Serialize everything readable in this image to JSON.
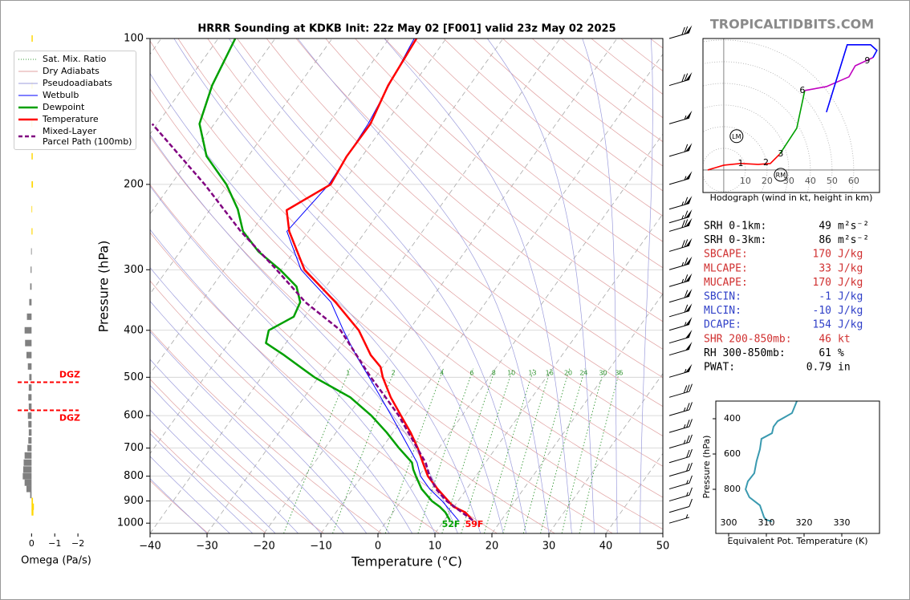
{
  "watermark": "TROPICALTIDBITS.COM",
  "chart_data": [
    {
      "type": "skewt",
      "title": "HRRR Sounding at KDKB Init: 22z May 02 [F001] valid 23z May 02 2025",
      "xlabel": "Temperature (°C)",
      "ylabel": "Pressure (hPa)",
      "xlim": [
        -40,
        50
      ],
      "ylim": [
        1050,
        100
      ],
      "log_y": true,
      "grid": true,
      "legend": "upper left",
      "xticks": [
        {
          "value": -40,
          "label": "−40"
        },
        {
          "value": -30,
          "label": "−30"
        },
        {
          "value": -20,
          "label": "−20"
        },
        {
          "value": -10,
          "label": "−10"
        },
        0,
        10,
        20,
        30,
        40,
        50
      ],
      "yticks": [
        100,
        200,
        300,
        400,
        500,
        600,
        700,
        800,
        900,
        1000
      ],
      "reference_lines": [
        {
          "name": "Sat. Mix. Ratio",
          "color": "#3a9a3a",
          "style": "dotted"
        },
        {
          "name": "Dry Adiabats",
          "color": "#e0a0a0",
          "style": "solid"
        },
        {
          "name": "Pseudoadiabats",
          "color": "#9c9cdc",
          "style": "solid"
        }
      ],
      "mixing_ratios": [
        1,
        2,
        4,
        6,
        8,
        10,
        13,
        16,
        20,
        24,
        30,
        36
      ],
      "series": [
        {
          "name": "Wetbulb",
          "color": "#0000ff",
          "linewidth": 1,
          "style": "solid",
          "pressure": [
            987,
            900,
            850,
            800,
            750,
            700,
            600,
            500,
            450,
            400,
            350,
            300,
            250,
            200,
            150,
            100
          ],
          "values": [
            12.5,
            7.2,
            3.5,
            0.3,
            -2.0,
            -5.2,
            -12.4,
            -21.1,
            -26.2,
            -31.5,
            -37.2,
            -46.5,
            -53.8,
            -52.3,
            -53.0,
            -55.6
          ]
        },
        {
          "name": "Dewpoint",
          "color": "#00a000",
          "linewidth": 2.5,
          "style": "solid",
          "pressure": [
            987,
            950,
            925,
            900,
            850,
            800,
            775,
            750,
            700,
            650,
            600,
            550,
            525,
            500,
            450,
            425,
            400,
            375,
            350,
            325,
            300,
            275,
            250,
            225,
            200,
            175,
            150,
            125,
            100
          ],
          "values": [
            11.0,
            9.2,
            7.5,
            5.4,
            2.1,
            -0.5,
            -1.8,
            -2.9,
            -7.0,
            -11.1,
            -15.9,
            -21.9,
            -26.2,
            -30.7,
            -38.8,
            -43.5,
            -44.6,
            -41.9,
            -42.6,
            -45.2,
            -50.2,
            -56.3,
            -61.5,
            -65.2,
            -70.3,
            -77.3,
            -82.6,
            -85.2,
            -87.0
          ]
        },
        {
          "name": "Temperature",
          "color": "#ff0000",
          "linewidth": 2.5,
          "style": "solid",
          "pressure": [
            987,
            950,
            925,
            850,
            800,
            750,
            700,
            650,
            600,
            550,
            500,
            476,
            450,
            400,
            350,
            300,
            250,
            226,
            200,
            175,
            150,
            125,
            100
          ],
          "values": [
            15.0,
            12.7,
            9.9,
            4.9,
            1.6,
            -1.0,
            -3.7,
            -6.9,
            -10.7,
            -14.8,
            -18.7,
            -20.4,
            -23.6,
            -28.8,
            -36.4,
            -45.9,
            -53.4,
            -56.5,
            -52.0,
            -52.7,
            -52.6,
            -54.3,
            -55.2
          ]
        },
        {
          "name": "Mixed-Layer\nParcel Path (100mb)",
          "color": "#800080",
          "linewidth": 2.5,
          "style": "dashed",
          "pressure": [
            987,
            900,
            850,
            800,
            750,
            700,
            600,
            550,
            500,
            400,
            350,
            300,
            250,
            200,
            150
          ],
          "values": [
            15.0,
            8.0,
            4.6,
            1.9,
            -0.5,
            -3.8,
            -11.1,
            -15.7,
            -20.8,
            -32.0,
            -41.7,
            -50.8,
            -61.9,
            -74.1,
            -90.9
          ]
        }
      ],
      "annotations": [
        {
          "text": "52F",
          "color": "#00a000"
        },
        {
          "text": "59F",
          "color": "#ff0000"
        }
      ],
      "wind_barbs": {
        "pressure": [
          100,
          125,
          150,
          175,
          200,
          225,
          240,
          250,
          275,
          300,
          325,
          350,
          375,
          400,
          425,
          450,
          500,
          550,
          600,
          650,
          700,
          750,
          800,
          850,
          900,
          950,
          1000
        ],
        "speed": [
          70,
          70,
          55,
          60,
          55,
          65,
          65,
          70,
          70,
          65,
          65,
          60,
          60,
          55,
          50,
          50,
          55,
          30,
          25,
          25,
          25,
          20,
          20,
          15,
          15,
          10,
          5
        ]
      }
    },
    {
      "type": "hodograph",
      "caption": "Hodograph (wind in kt, height in km)",
      "xlim": [
        -9.6,
        71.9
      ],
      "ylim": [
        -10.4,
        60.7
      ],
      "rings": [
        10,
        20,
        30,
        40,
        50,
        60
      ],
      "segments": [
        {
          "color": "#ff0000",
          "u": [
            -7.4,
            0,
            7.8,
            15.9,
            21.5,
            25.9
          ],
          "v": [
            0,
            2.2,
            3.0,
            2.6,
            3.0,
            7.4
          ]
        },
        {
          "color": "#00a000",
          "u": [
            25.9,
            33.7,
            37.4
          ],
          "v": [
            7.4,
            19.3,
            36.7
          ]
        },
        {
          "color": "#c000c0",
          "u": [
            37.4,
            47.4,
            57.8,
            60.7,
            68.9
          ],
          "v": [
            36.7,
            38.5,
            43.0,
            48.1,
            51.9
          ]
        },
        {
          "color": "#0000ff",
          "u": [
            68.9,
            70.7,
            67.8,
            57.0,
            47.4
          ],
          "v": [
            51.9,
            55.2,
            57.8,
            57.8,
            26.7
          ]
        }
      ],
      "labels": [
        {
          "text": "1",
          "u": 7.8,
          "v": 3.0
        },
        {
          "text": "2",
          "u": 19.5,
          "v": 3.3
        },
        {
          "text": "3",
          "u": 26.3,
          "v": 7.4
        },
        {
          "text": "6",
          "u": 36.3,
          "v": 36.7
        },
        {
          "text": "9",
          "u": 66.3,
          "v": 50.4
        }
      ],
      "storm_motion": [
        {
          "text": "LM",
          "u": 5.9,
          "v": 15.6
        },
        {
          "text": "RM",
          "u": 26.3,
          "v": -2.2
        }
      ]
    },
    {
      "type": "line",
      "xlabel": "Equivalent Pot. Temperature (K)",
      "ylabel": "Pressure (hPa)",
      "color": "#3a9ab0",
      "xlim": [
        296.6,
        340.0
      ],
      "ylim": [
        1050,
        300
      ],
      "xticks": [
        300,
        310,
        320,
        330
      ],
      "yticks": [
        400,
        600,
        800
      ],
      "pressure": [
        300,
        368,
        414,
        445,
        482,
        514,
        573,
        641,
        709,
        755,
        800,
        845,
        891,
        959,
        973,
        982
      ],
      "values": [
        318.1,
        316.8,
        313.0,
        311.9,
        311.5,
        308.7,
        308.3,
        307.4,
        306.8,
        305.1,
        304.5,
        305.5,
        308.3,
        309.4,
        310.0,
        311.5
      ]
    },
    {
      "type": "barh",
      "xlabel": "Omega (Pa/s)",
      "xlim": [
        0.6,
        -2.1
      ],
      "ylim": [
        1050,
        100
      ],
      "xticks": [
        0,
        {
          "value": -1,
          "label": "−1"
        },
        {
          "value": -2,
          "label": "−2"
        }
      ],
      "positive_color": "#808080",
      "negative_color": "#ffd700",
      "pressure": [
        100,
        125,
        150,
        175,
        200,
        225,
        250,
        275,
        300,
        325,
        350,
        375,
        400,
        425,
        450,
        475,
        500,
        525,
        550,
        575,
        600,
        625,
        650,
        675,
        700,
        725,
        750,
        775,
        800,
        825,
        850,
        875,
        900,
        925,
        950
      ],
      "values": [
        -0.05,
        -0.04,
        -0.03,
        -0.05,
        -0.06,
        -0.02,
        -0.04,
        0.02,
        0.04,
        0.06,
        0.1,
        0.2,
        0.3,
        0.28,
        0.22,
        0.16,
        0.1,
        0.12,
        0.14,
        0.12,
        0.16,
        0.14,
        0.12,
        0.14,
        0.18,
        0.3,
        0.34,
        0.36,
        0.38,
        0.3,
        0.22,
        0.06,
        -0.06,
        -0.1,
        -0.08
      ],
      "dgz": {
        "pressure": [
          512,
          585
        ],
        "labels": [
          "DGZ",
          "DGZ"
        ],
        "color": "#ff0000"
      }
    }
  ],
  "stats": {
    "rows": [
      {
        "label": "SRH 0-1km:",
        "value": 49,
        "unit": "m²s⁻²",
        "color": "#000000"
      },
      {
        "label": "SRH 0-3km:",
        "value": 86,
        "unit": "m²s⁻²",
        "color": "#000000"
      },
      {
        "label": "SBCAPE:",
        "value": 170,
        "unit": "J/kg",
        "color": "#d03030"
      },
      {
        "label": "MLCAPE:",
        "value": 33,
        "unit": "J/kg",
        "color": "#d03030"
      },
      {
        "label": "MUCAPE:",
        "value": 170,
        "unit": "J/kg",
        "color": "#d03030"
      },
      {
        "label": "SBCIN:",
        "value": -1,
        "unit": "J/kg",
        "color": "#3040c8"
      },
      {
        "label": "MLCIN:",
        "value": -10,
        "unit": "J/kg",
        "color": "#3040c8"
      },
      {
        "label": "DCAPE:",
        "value": 154,
        "unit": "J/kg",
        "color": "#3040c8"
      },
      {
        "label": "SHR 200-850mb:",
        "value": 46,
        "unit": "kt",
        "color": "#d03030"
      },
      {
        "label": "RH 300-850mb:",
        "value": 61,
        "unit": "%",
        "color": "#000000"
      },
      {
        "label": "PWAT:",
        "value": 0.79,
        "unit": "in",
        "color": "#000000"
      }
    ]
  }
}
